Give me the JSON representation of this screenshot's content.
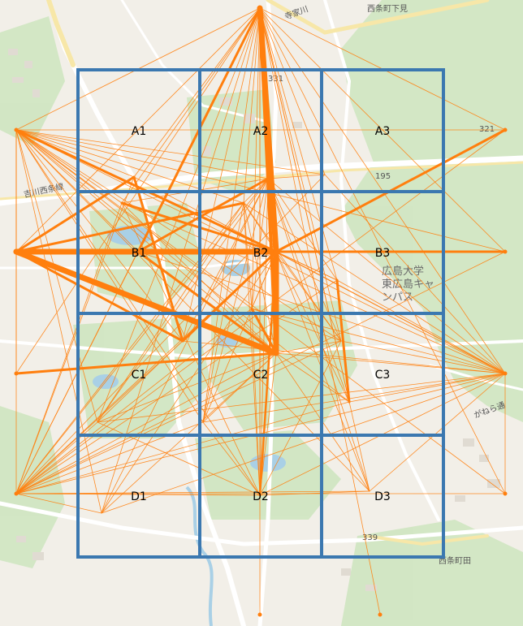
{
  "map": {
    "colors": {
      "grid": "#3b78b0",
      "flow": "#ff7f0e",
      "green": "#cfe6c1",
      "road": "#ffffff",
      "highway": "#f7e7a8",
      "water": "#a9d0e6"
    },
    "labels": {
      "place_top": "西条町下見",
      "place_bottom": "西条町田",
      "road_left": "吉川西条線",
      "road_top": "寺家川",
      "park_name": "広島大学\n東広島キャ\nンパス",
      "route_195": "195",
      "elev_321": "321",
      "elev_331": "331",
      "elev_339": "339",
      "road_right": "がねら通"
    }
  },
  "grid": {
    "cells": [
      "A1",
      "A2",
      "A3",
      "B1",
      "B2",
      "B3",
      "C1",
      "C2",
      "C3",
      "D1",
      "D2",
      "D3"
    ]
  }
}
